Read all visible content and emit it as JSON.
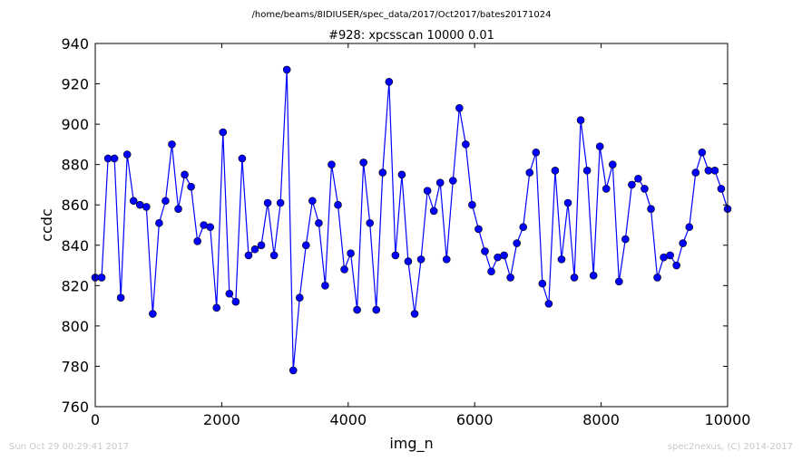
{
  "chart_data": {
    "type": "line",
    "suptitle": "/home/beams/8IDIUSER/spec_data/2017/Oct2017/bates20171024",
    "title": "#928: xpcsscan 10000 0.01",
    "xlabel": "img_n",
    "ylabel": "ccdc",
    "xlim": [
      0,
      10000
    ],
    "ylim": [
      760,
      940
    ],
    "xticks": [
      0,
      2000,
      4000,
      6000,
      8000,
      10000
    ],
    "yticks": [
      760,
      780,
      800,
      820,
      840,
      860,
      880,
      900,
      920,
      940
    ],
    "grid": false,
    "line_color": "#0000ff",
    "marker": "circle",
    "x": [
      0,
      101,
      202,
      303,
      404,
      505,
      606,
      707,
      808,
      909,
      1010,
      1111,
      1212,
      1313,
      1414,
      1515,
      1616,
      1717,
      1818,
      1919,
      2020,
      2121,
      2222,
      2323,
      2424,
      2525,
      2626,
      2727,
      2828,
      2929,
      3030,
      3131,
      3232,
      3333,
      3434,
      3535,
      3636,
      3737,
      3838,
      3939,
      4040,
      4141,
      4242,
      4343,
      4444,
      4545,
      4646,
      4747,
      4848,
      4949,
      5051,
      5152,
      5253,
      5354,
      5455,
      5556,
      5657,
      5758,
      5859,
      5960,
      6061,
      6162,
      6263,
      6364,
      6465,
      6566,
      6667,
      6768,
      6869,
      6970,
      7071,
      7172,
      7273,
      7374,
      7475,
      7576,
      7677,
      7778,
      7879,
      7980,
      8081,
      8182,
      8283,
      8384,
      8485,
      8586,
      8687,
      8788,
      8889,
      8990,
      9091,
      9192,
      9293,
      9394,
      9495,
      9596,
      9697,
      9798,
      9899,
      10000
    ],
    "y": [
      824,
      824,
      883,
      883,
      814,
      885,
      862,
      860,
      859,
      806,
      851,
      862,
      890,
      858,
      875,
      869,
      842,
      850,
      849,
      809,
      896,
      816,
      812,
      883,
      835,
      838,
      840,
      861,
      835,
      861,
      927,
      778,
      814,
      840,
      862,
      851,
      820,
      880,
      860,
      828,
      836,
      808,
      881,
      851,
      808,
      876,
      921,
      835,
      875,
      832,
      806,
      833,
      867,
      857,
      871,
      833,
      872,
      908,
      890,
      860,
      848,
      837,
      827,
      834,
      835,
      824,
      841,
      849,
      876,
      886,
      821,
      811,
      877,
      833,
      861,
      824,
      902,
      877,
      825,
      889,
      868,
      880,
      822,
      843,
      870,
      873,
      868,
      858,
      824,
      834,
      835,
      830,
      841,
      849,
      876,
      886,
      877,
      877,
      868,
      858
    ]
  },
  "footer": {
    "left": "Sun Oct 29 00:29:41 2017",
    "right": "spec2nexus, (C) 2014-2017"
  }
}
